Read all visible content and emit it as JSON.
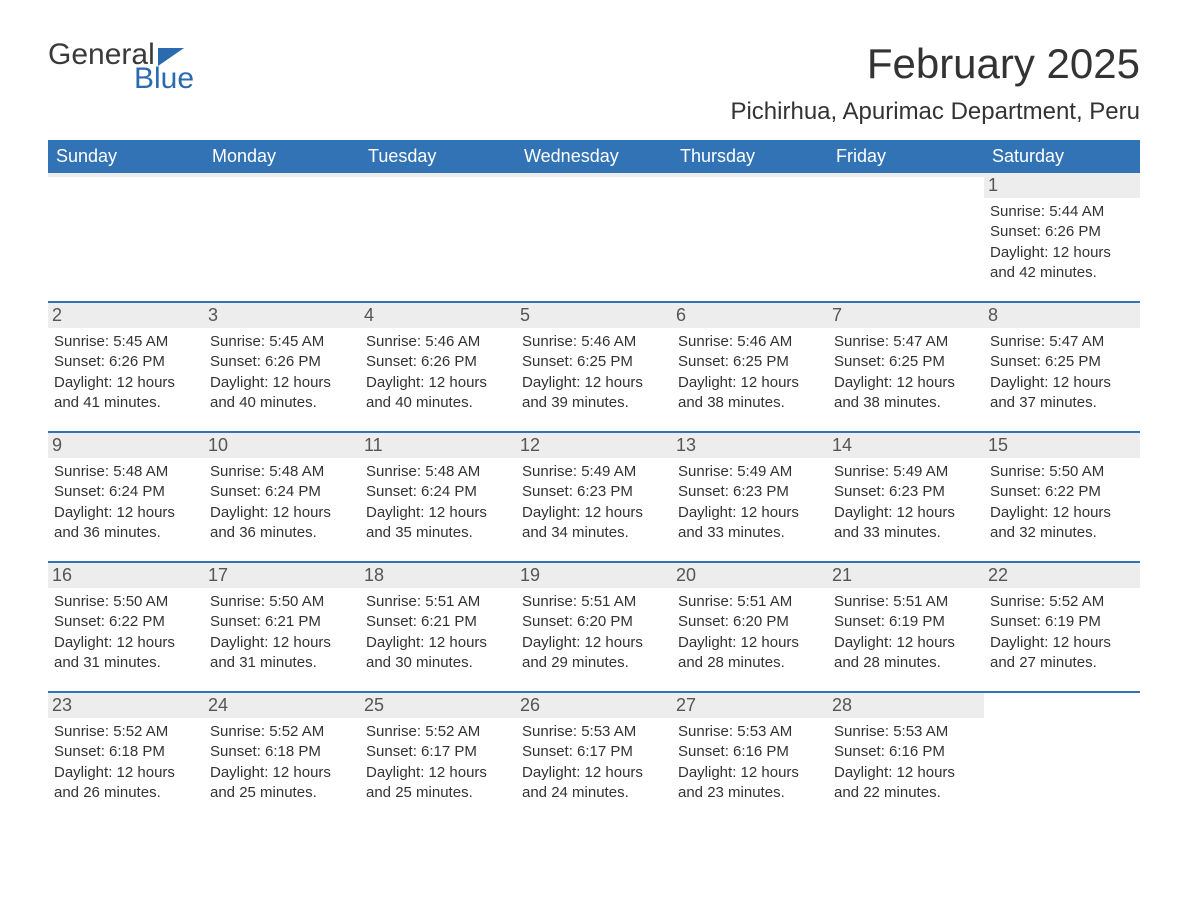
{
  "logo": {
    "text1": "General",
    "text2": "Blue",
    "brand_color": "#2a6bb0"
  },
  "title": "February 2025",
  "location": "Pichirhua, Apurimac Department, Peru",
  "colors": {
    "header_bg": "#3273b6",
    "header_text": "#ffffff",
    "daynum_bg": "#ededed",
    "daynum_text": "#555555",
    "body_text": "#333333",
    "rule": "#3273b6",
    "background": "#ffffff"
  },
  "fonts": {
    "title_pt": 42,
    "location_pt": 24,
    "header_pt": 18,
    "daynum_pt": 18,
    "detail_pt": 15,
    "family": "Arial"
  },
  "day_headers": [
    "Sunday",
    "Monday",
    "Tuesday",
    "Wednesday",
    "Thursday",
    "Friday",
    "Saturday"
  ],
  "weeks": [
    [
      {
        "num": "",
        "sunrise": "",
        "sunset": "",
        "daylight": ""
      },
      {
        "num": "",
        "sunrise": "",
        "sunset": "",
        "daylight": ""
      },
      {
        "num": "",
        "sunrise": "",
        "sunset": "",
        "daylight": ""
      },
      {
        "num": "",
        "sunrise": "",
        "sunset": "",
        "daylight": ""
      },
      {
        "num": "",
        "sunrise": "",
        "sunset": "",
        "daylight": ""
      },
      {
        "num": "",
        "sunrise": "",
        "sunset": "",
        "daylight": ""
      },
      {
        "num": "1",
        "sunrise": "Sunrise: 5:44 AM",
        "sunset": "Sunset: 6:26 PM",
        "daylight": "Daylight: 12 hours and 42 minutes."
      }
    ],
    [
      {
        "num": "2",
        "sunrise": "Sunrise: 5:45 AM",
        "sunset": "Sunset: 6:26 PM",
        "daylight": "Daylight: 12 hours and 41 minutes."
      },
      {
        "num": "3",
        "sunrise": "Sunrise: 5:45 AM",
        "sunset": "Sunset: 6:26 PM",
        "daylight": "Daylight: 12 hours and 40 minutes."
      },
      {
        "num": "4",
        "sunrise": "Sunrise: 5:46 AM",
        "sunset": "Sunset: 6:26 PM",
        "daylight": "Daylight: 12 hours and 40 minutes."
      },
      {
        "num": "5",
        "sunrise": "Sunrise: 5:46 AM",
        "sunset": "Sunset: 6:25 PM",
        "daylight": "Daylight: 12 hours and 39 minutes."
      },
      {
        "num": "6",
        "sunrise": "Sunrise: 5:46 AM",
        "sunset": "Sunset: 6:25 PM",
        "daylight": "Daylight: 12 hours and 38 minutes."
      },
      {
        "num": "7",
        "sunrise": "Sunrise: 5:47 AM",
        "sunset": "Sunset: 6:25 PM",
        "daylight": "Daylight: 12 hours and 38 minutes."
      },
      {
        "num": "8",
        "sunrise": "Sunrise: 5:47 AM",
        "sunset": "Sunset: 6:25 PM",
        "daylight": "Daylight: 12 hours and 37 minutes."
      }
    ],
    [
      {
        "num": "9",
        "sunrise": "Sunrise: 5:48 AM",
        "sunset": "Sunset: 6:24 PM",
        "daylight": "Daylight: 12 hours and 36 minutes."
      },
      {
        "num": "10",
        "sunrise": "Sunrise: 5:48 AM",
        "sunset": "Sunset: 6:24 PM",
        "daylight": "Daylight: 12 hours and 36 minutes."
      },
      {
        "num": "11",
        "sunrise": "Sunrise: 5:48 AM",
        "sunset": "Sunset: 6:24 PM",
        "daylight": "Daylight: 12 hours and 35 minutes."
      },
      {
        "num": "12",
        "sunrise": "Sunrise: 5:49 AM",
        "sunset": "Sunset: 6:23 PM",
        "daylight": "Daylight: 12 hours and 34 minutes."
      },
      {
        "num": "13",
        "sunrise": "Sunrise: 5:49 AM",
        "sunset": "Sunset: 6:23 PM",
        "daylight": "Daylight: 12 hours and 33 minutes."
      },
      {
        "num": "14",
        "sunrise": "Sunrise: 5:49 AM",
        "sunset": "Sunset: 6:23 PM",
        "daylight": "Daylight: 12 hours and 33 minutes."
      },
      {
        "num": "15",
        "sunrise": "Sunrise: 5:50 AM",
        "sunset": "Sunset: 6:22 PM",
        "daylight": "Daylight: 12 hours and 32 minutes."
      }
    ],
    [
      {
        "num": "16",
        "sunrise": "Sunrise: 5:50 AM",
        "sunset": "Sunset: 6:22 PM",
        "daylight": "Daylight: 12 hours and 31 minutes."
      },
      {
        "num": "17",
        "sunrise": "Sunrise: 5:50 AM",
        "sunset": "Sunset: 6:21 PM",
        "daylight": "Daylight: 12 hours and 31 minutes."
      },
      {
        "num": "18",
        "sunrise": "Sunrise: 5:51 AM",
        "sunset": "Sunset: 6:21 PM",
        "daylight": "Daylight: 12 hours and 30 minutes."
      },
      {
        "num": "19",
        "sunrise": "Sunrise: 5:51 AM",
        "sunset": "Sunset: 6:20 PM",
        "daylight": "Daylight: 12 hours and 29 minutes."
      },
      {
        "num": "20",
        "sunrise": "Sunrise: 5:51 AM",
        "sunset": "Sunset: 6:20 PM",
        "daylight": "Daylight: 12 hours and 28 minutes."
      },
      {
        "num": "21",
        "sunrise": "Sunrise: 5:51 AM",
        "sunset": "Sunset: 6:19 PM",
        "daylight": "Daylight: 12 hours and 28 minutes."
      },
      {
        "num": "22",
        "sunrise": "Sunrise: 5:52 AM",
        "sunset": "Sunset: 6:19 PM",
        "daylight": "Daylight: 12 hours and 27 minutes."
      }
    ],
    [
      {
        "num": "23",
        "sunrise": "Sunrise: 5:52 AM",
        "sunset": "Sunset: 6:18 PM",
        "daylight": "Daylight: 12 hours and 26 minutes."
      },
      {
        "num": "24",
        "sunrise": "Sunrise: 5:52 AM",
        "sunset": "Sunset: 6:18 PM",
        "daylight": "Daylight: 12 hours and 25 minutes."
      },
      {
        "num": "25",
        "sunrise": "Sunrise: 5:52 AM",
        "sunset": "Sunset: 6:17 PM",
        "daylight": "Daylight: 12 hours and 25 minutes."
      },
      {
        "num": "26",
        "sunrise": "Sunrise: 5:53 AM",
        "sunset": "Sunset: 6:17 PM",
        "daylight": "Daylight: 12 hours and 24 minutes."
      },
      {
        "num": "27",
        "sunrise": "Sunrise: 5:53 AM",
        "sunset": "Sunset: 6:16 PM",
        "daylight": "Daylight: 12 hours and 23 minutes."
      },
      {
        "num": "28",
        "sunrise": "Sunrise: 5:53 AM",
        "sunset": "Sunset: 6:16 PM",
        "daylight": "Daylight: 12 hours and 22 minutes."
      },
      {
        "num": "",
        "sunrise": "",
        "sunset": "",
        "daylight": ""
      }
    ]
  ]
}
